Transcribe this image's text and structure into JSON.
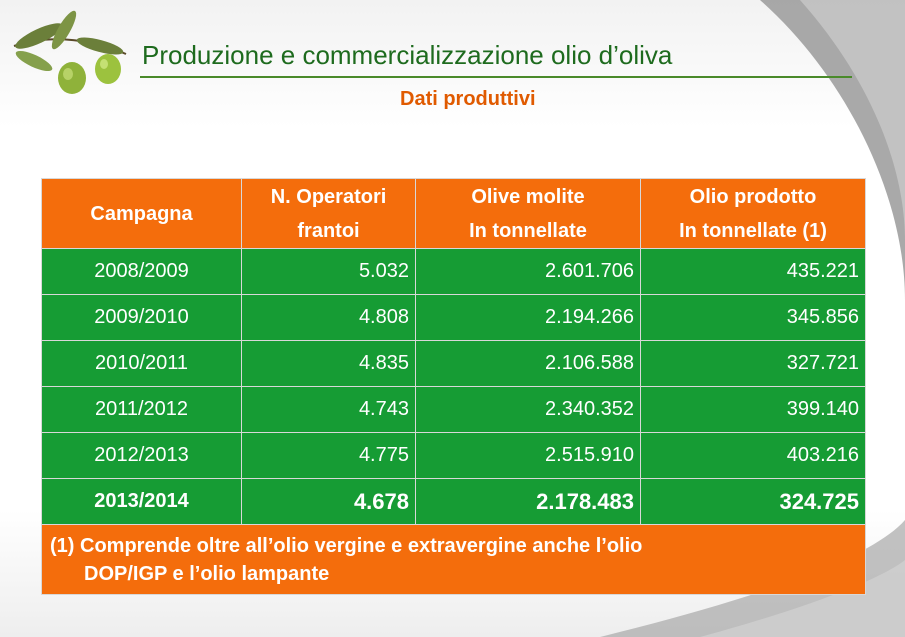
{
  "header": {
    "title": "Produzione e commercializzazione olio d’oliva",
    "subtitle": "Dati produttivi"
  },
  "table": {
    "columns": [
      {
        "line1": "Campagna",
        "line2": ""
      },
      {
        "line1": "N. Operatori",
        "line2": "frantoi"
      },
      {
        "line1": "Olive  molite",
        "line2": "In tonnellate"
      },
      {
        "line1": "Olio prodotto",
        "line2": "In tonnellate (1)"
      }
    ],
    "rows": [
      {
        "campagna": "2008/2009",
        "operatori": "5.032",
        "olive": "2.601.706",
        "olio": "435.221"
      },
      {
        "campagna": "2009/2010",
        "operatori": "4.808",
        "olive": "2.194.266",
        "olio": "345.856"
      },
      {
        "campagna": "2010/2011",
        "operatori": "4.835",
        "olive": "2.106.588",
        "olio": "327.721"
      },
      {
        "campagna": "2011/2012",
        "operatori": "4.743",
        "olive": "2.340.352",
        "olio": "399.140"
      },
      {
        "campagna": "2012/2013",
        "operatori": "4.775",
        "olive": "2.515.910",
        "olio": "403.216"
      },
      {
        "campagna": "2013/2014",
        "operatori": "4.678",
        "olive": "2.178.483",
        "olio": "324.725"
      }
    ],
    "footnote_line1": "(1)  Comprende oltre all’olio vergine e extravergine anche l’olio",
    "footnote_line2": "DOP/IGP e l’olio lampante"
  },
  "colors": {
    "header_orange": "#f46d0c",
    "body_green": "#169c34",
    "title_green": "#1e6b1e",
    "subtitle_orange": "#e05a00"
  },
  "icons": [
    "olive-branch-icon"
  ]
}
